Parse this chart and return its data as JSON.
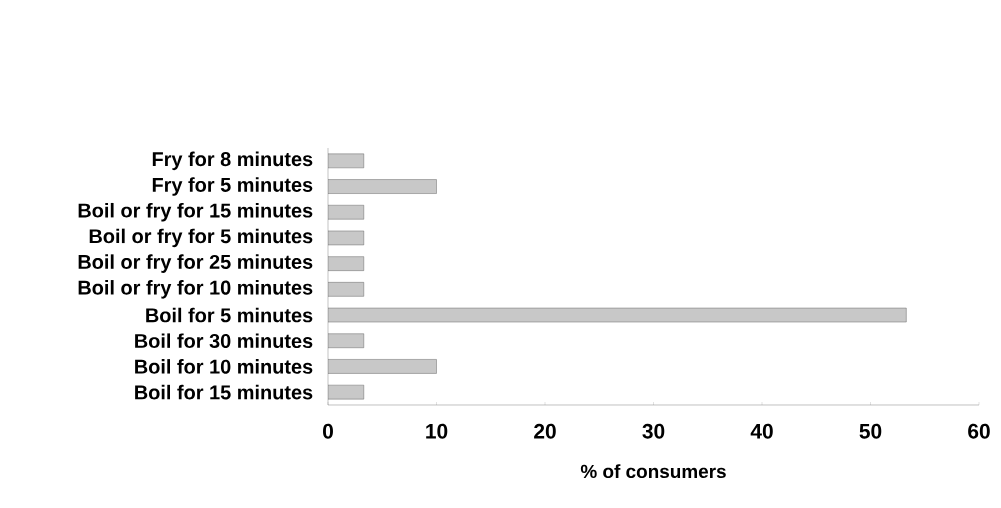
{
  "chart_data": {
    "type": "bar",
    "orientation": "horizontal",
    "categories": [
      "Fry for 8 minutes",
      "Fry for 5 minutes",
      "Boil or fry for 15 minutes",
      "Boil or fry for 5 minutes",
      "Boil or fry for 25 minutes",
      "Boil or fry for 10 minutes",
      "Boil for 5 minutes",
      "Boil for 30 minutes",
      "Boil for 10 minutes",
      "Boil for 15 minutes"
    ],
    "values": [
      3.3,
      10,
      3.3,
      3.3,
      3.3,
      3.3,
      53.3,
      3.3,
      10,
      3.3
    ],
    "color": "#c8c8c8",
    "xlabel": "% of consumers",
    "xlim": [
      0,
      60
    ],
    "xticks": [
      0,
      10,
      20,
      30,
      40,
      50,
      60
    ]
  }
}
